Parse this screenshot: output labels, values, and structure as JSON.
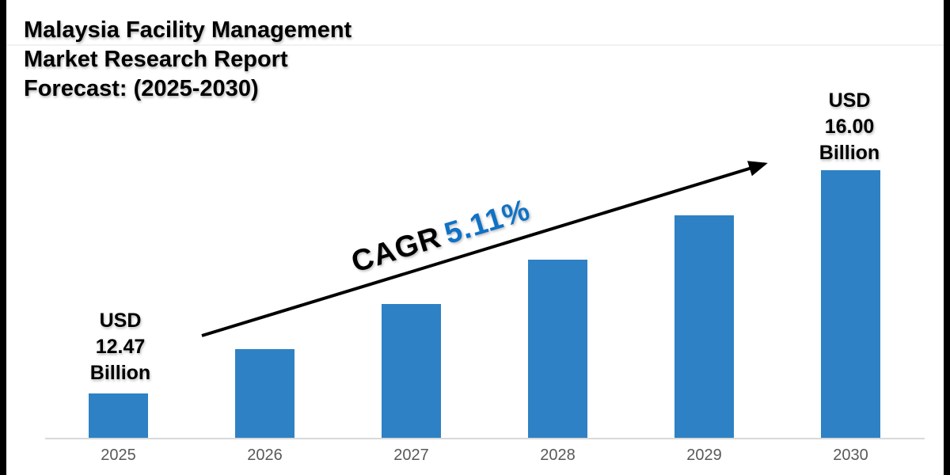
{
  "title": {
    "lines": [
      "Malaysia Facility Management",
      "Market Research Report",
      "Forecast: (2025-2030)"
    ]
  },
  "cagr": {
    "label": "CAGR",
    "value": "5.11%"
  },
  "annotations": {
    "first_bar": {
      "lines": [
        "USD",
        "12.47",
        "Billion"
      ]
    },
    "last_bar": {
      "lines": [
        "USD",
        "16.00",
        "Billion"
      ]
    }
  },
  "colors": {
    "bar": "#2E81C4",
    "cagr_value": "#0F72C6",
    "axis_line": "#D9D9D9",
    "tick_label": "#595959",
    "arrow": "#000000",
    "frame_bars": "#000000",
    "background": "#FFFFFF"
  },
  "chart_data": {
    "type": "bar",
    "title": "Malaysia Facility Management Market Research Report Forecast: (2025-2030)",
    "categories": [
      "2025",
      "2026",
      "2027",
      "2028",
      "2029",
      "2030"
    ],
    "values_usd_billion_est": [
      12.47,
      13.11,
      13.78,
      14.48,
      15.22,
      16.0
    ],
    "labeled_points": [
      {
        "category": "2025",
        "label": "USD 12.47 Billion"
      },
      {
        "category": "2030",
        "label": "USD 16.00 Billion"
      }
    ],
    "annotation": "CAGR 5.11%",
    "xlabel": "",
    "ylabel": "",
    "grid": false,
    "legend": false,
    "bar_heights_pct": [
      16.6,
      33.1,
      50.0,
      66.6,
      83.1,
      100.0
    ]
  }
}
